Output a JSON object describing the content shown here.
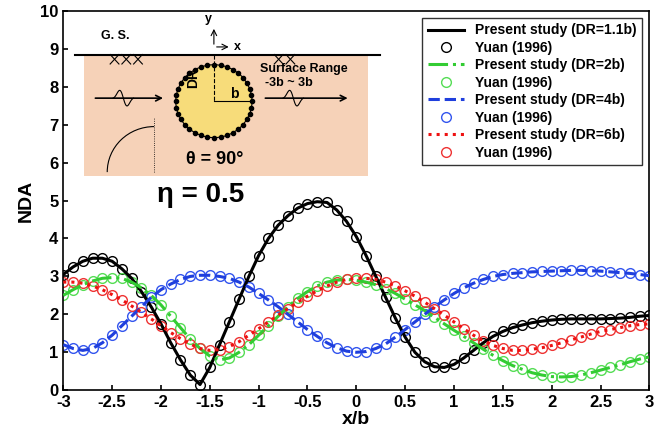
{
  "chart_data": {
    "type": "line",
    "x_label": "x/b",
    "y_label": "NDA",
    "xlim": [
      -3,
      3
    ],
    "ylim": [
      0,
      10
    ],
    "xticks": [
      -3,
      -2.5,
      -2,
      -1.5,
      -1,
      -0.5,
      0,
      0.5,
      1,
      1.5,
      2,
      2.5,
      3
    ],
    "yticks": [
      0,
      1,
      2,
      3,
      4,
      5,
      6,
      7,
      8,
      9,
      10
    ],
    "grid": false,
    "legend": "upper right",
    "annotations": [
      "G. S.",
      "y",
      "x",
      "DR",
      "b",
      "Surface Range",
      "-3b ~ 3b",
      "θ = 90°",
      "η = 0.5"
    ],
    "x": [
      -3,
      -2.9,
      -2.8,
      -2.7,
      -2.6,
      -2.5,
      -2.4,
      -2.3,
      -2.2,
      -2.1,
      -2,
      -1.9,
      -1.8,
      -1.7,
      -1.6,
      -1.5,
      -1.4,
      -1.3,
      -1.2,
      -1.1,
      -1,
      -0.9,
      -0.8,
      -0.7,
      -0.6,
      -0.5,
      -0.4,
      -0.3,
      -0.2,
      -0.1,
      0,
      0.1,
      0.2,
      0.3,
      0.4,
      0.5,
      0.6,
      0.7,
      0.8,
      0.9,
      1,
      1.1,
      1.2,
      1.3,
      1.4,
      1.5,
      1.6,
      1.7,
      1.8,
      1.9,
      2,
      2.1,
      2.2,
      2.3,
      2.4,
      2.5,
      2.6,
      2.7,
      2.8,
      2.9,
      3
    ],
    "series": [
      {
        "name": "Present study (DR=1.1b)",
        "color": "#000000",
        "line_style": "solid",
        "marker": "none",
        "values": [
          3.05,
          3.25,
          3.4,
          3.48,
          3.48,
          3.4,
          3.2,
          2.95,
          2.6,
          2.2,
          1.75,
          1.25,
          0.8,
          0.4,
          0.15,
          0.6,
          1.2,
          1.8,
          2.4,
          3.0,
          3.55,
          4.0,
          4.35,
          4.6,
          4.8,
          4.92,
          4.97,
          4.95,
          4.75,
          4.45,
          4.05,
          3.55,
          3.0,
          2.45,
          1.9,
          1.4,
          1.0,
          0.75,
          0.62,
          0.6,
          0.68,
          0.85,
          1.05,
          1.25,
          1.42,
          1.55,
          1.65,
          1.72,
          1.78,
          1.82,
          1.85,
          1.87,
          1.88,
          1.88,
          1.88,
          1.88,
          1.89,
          1.9,
          1.92,
          1.95,
          1.97
        ]
      },
      {
        "name": "Yuan (1996)",
        "color": "#000000",
        "line_style": "none",
        "marker": "circle",
        "values": [
          3.05,
          3.25,
          3.4,
          3.48,
          3.48,
          3.4,
          3.2,
          2.95,
          2.6,
          2.2,
          1.75,
          1.25,
          0.8,
          0.4,
          0.15,
          0.6,
          1.2,
          1.8,
          2.4,
          3.0,
          3.55,
          4.0,
          4.35,
          4.6,
          4.8,
          4.92,
          4.97,
          4.95,
          4.75,
          4.45,
          4.05,
          3.55,
          3.0,
          2.45,
          1.9,
          1.4,
          1.0,
          0.75,
          0.62,
          0.6,
          0.68,
          0.85,
          1.05,
          1.25,
          1.42,
          1.55,
          1.65,
          1.72,
          1.78,
          1.82,
          1.85,
          1.87,
          1.88,
          1.88,
          1.88,
          1.88,
          1.89,
          1.9,
          1.92,
          1.95,
          1.97
        ]
      },
      {
        "name": "Present study (DR=2b)",
        "color": "#33cc33",
        "line_style": "dashdot",
        "marker": "none",
        "values": [
          2.5,
          2.65,
          2.78,
          2.88,
          2.95,
          2.97,
          2.95,
          2.85,
          2.7,
          2.5,
          2.25,
          1.95,
          1.65,
          1.35,
          1.1,
          0.9,
          0.8,
          0.85,
          1.0,
          1.2,
          1.45,
          1.7,
          1.95,
          2.2,
          2.42,
          2.6,
          2.75,
          2.85,
          2.9,
          2.92,
          2.9,
          2.85,
          2.78,
          2.68,
          2.55,
          2.4,
          2.25,
          2.1,
          1.92,
          1.75,
          1.58,
          1.42,
          1.25,
          1.08,
          0.92,
          0.78,
          0.65,
          0.55,
          0.46,
          0.4,
          0.36,
          0.35,
          0.36,
          0.4,
          0.46,
          0.53,
          0.6,
          0.67,
          0.75,
          0.82,
          0.88
        ]
      },
      {
        "name": "Yuan (1996)",
        "color": "#55dd55",
        "line_style": "none",
        "marker": "circle",
        "values": [
          2.5,
          2.65,
          2.78,
          2.88,
          2.95,
          2.97,
          2.95,
          2.85,
          2.7,
          2.5,
          2.25,
          1.95,
          1.65,
          1.35,
          1.1,
          0.9,
          0.8,
          0.85,
          1.0,
          1.2,
          1.45,
          1.7,
          1.95,
          2.2,
          2.42,
          2.6,
          2.75,
          2.85,
          2.9,
          2.92,
          2.9,
          2.85,
          2.78,
          2.68,
          2.55,
          2.4,
          2.25,
          2.1,
          1.92,
          1.75,
          1.58,
          1.42,
          1.25,
          1.08,
          0.92,
          0.78,
          0.65,
          0.55,
          0.46,
          0.4,
          0.36,
          0.35,
          0.36,
          0.4,
          0.46,
          0.53,
          0.6,
          0.67,
          0.75,
          0.82,
          0.88
        ]
      },
      {
        "name": "Present study (DR=4b)",
        "color": "#1f3fdd",
        "line_style": "dashed",
        "marker": "none",
        "values": [
          1.2,
          1.1,
          1.05,
          1.1,
          1.25,
          1.45,
          1.7,
          1.95,
          2.2,
          2.45,
          2.65,
          2.8,
          2.92,
          3.0,
          3.03,
          3.03,
          3.0,
          2.95,
          2.85,
          2.72,
          2.55,
          2.38,
          2.2,
          2.0,
          1.8,
          1.6,
          1.42,
          1.25,
          1.12,
          1.03,
          1.0,
          1.02,
          1.1,
          1.22,
          1.4,
          1.6,
          1.8,
          2.0,
          2.2,
          2.38,
          2.55,
          2.7,
          2.82,
          2.92,
          3.0,
          3.05,
          3.08,
          3.1,
          3.12,
          3.13,
          3.14,
          3.15,
          3.16,
          3.16,
          3.15,
          3.14,
          3.12,
          3.1,
          3.08,
          3.05,
          3.02
        ]
      },
      {
        "name": "Yuan (1996)",
        "color": "#3355ee",
        "line_style": "none",
        "marker": "circle",
        "values": [
          1.2,
          1.1,
          1.05,
          1.1,
          1.25,
          1.45,
          1.7,
          1.95,
          2.2,
          2.45,
          2.65,
          2.8,
          2.92,
          3.0,
          3.03,
          3.03,
          3.0,
          2.95,
          2.85,
          2.72,
          2.55,
          2.38,
          2.2,
          2.0,
          1.8,
          1.6,
          1.42,
          1.25,
          1.12,
          1.03,
          1.0,
          1.02,
          1.1,
          1.22,
          1.4,
          1.6,
          1.8,
          2.0,
          2.2,
          2.38,
          2.55,
          2.7,
          2.82,
          2.92,
          3.0,
          3.05,
          3.08,
          3.1,
          3.12,
          3.13,
          3.14,
          3.15,
          3.16,
          3.16,
          3.15,
          3.14,
          3.12,
          3.1,
          3.08,
          3.05,
          3.02
        ]
      },
      {
        "name": "Present study (DR=6b)",
        "color": "#ee1111",
        "line_style": "dotted",
        "marker": "none",
        "values": [
          2.85,
          2.85,
          2.82,
          2.75,
          2.65,
          2.52,
          2.38,
          2.22,
          2.05,
          1.88,
          1.7,
          1.52,
          1.36,
          1.22,
          1.1,
          1.05,
          1.07,
          1.15,
          1.28,
          1.45,
          1.62,
          1.8,
          1.98,
          2.15,
          2.32,
          2.48,
          2.62,
          2.75,
          2.85,
          2.92,
          2.95,
          2.95,
          2.92,
          2.85,
          2.75,
          2.62,
          2.48,
          2.32,
          2.15,
          1.98,
          1.8,
          1.62,
          1.45,
          1.3,
          1.18,
          1.1,
          1.05,
          1.05,
          1.08,
          1.12,
          1.18,
          1.25,
          1.33,
          1.4,
          1.48,
          1.55,
          1.6,
          1.65,
          1.7,
          1.73,
          1.75
        ]
      },
      {
        "name": "Yuan (1996)",
        "color": "#ee3333",
        "line_style": "none",
        "marker": "circle",
        "values": [
          2.85,
          2.85,
          2.82,
          2.75,
          2.65,
          2.52,
          2.38,
          2.22,
          2.05,
          1.88,
          1.7,
          1.52,
          1.36,
          1.22,
          1.1,
          1.05,
          1.07,
          1.15,
          1.28,
          1.45,
          1.62,
          1.8,
          1.98,
          2.15,
          2.32,
          2.48,
          2.62,
          2.75,
          2.85,
          2.92,
          2.95,
          2.95,
          2.92,
          2.85,
          2.75,
          2.62,
          2.48,
          2.32,
          2.15,
          1.98,
          1.8,
          1.62,
          1.45,
          1.3,
          1.18,
          1.1,
          1.05,
          1.05,
          1.08,
          1.12,
          1.18,
          1.25,
          1.33,
          1.4,
          1.48,
          1.55,
          1.6,
          1.65,
          1.7,
          1.73,
          1.75
        ]
      }
    ]
  }
}
